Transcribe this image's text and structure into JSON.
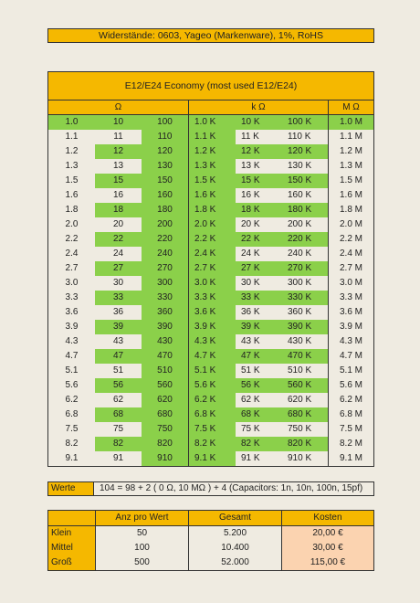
{
  "banner": "Widerstände: 0603, Yageo (Markenware),  1%, RoHS",
  "table": {
    "title": "E12/E24 Economy (most used E12/E24)",
    "headers": [
      "Ω",
      "k Ω",
      "M Ω"
    ],
    "rows": [
      [
        "1.0",
        "10",
        "100",
        "1.0 K",
        "10 K",
        "100 K",
        "1.0 M"
      ],
      [
        "1.1",
        "11",
        "110",
        "1.1 K",
        "11 K",
        "110 K",
        "1.1 M"
      ],
      [
        "1.2",
        "12",
        "120",
        "1.2 K",
        "12 K",
        "120 K",
        "1.2 M"
      ],
      [
        "1.3",
        "13",
        "130",
        "1.3 K",
        "13 K",
        "130 K",
        "1.3 M"
      ],
      [
        "1.5",
        "15",
        "150",
        "1.5 K",
        "15 K",
        "150 K",
        "1.5 M"
      ],
      [
        "1.6",
        "16",
        "160",
        "1.6 K",
        "16 K",
        "160 K",
        "1.6 M"
      ],
      [
        "1.8",
        "18",
        "180",
        "1.8 K",
        "18 K",
        "180 K",
        "1.8 M"
      ],
      [
        "2.0",
        "20",
        "200",
        "2.0 K",
        "20 K",
        "200 K",
        "2.0 M"
      ],
      [
        "2.2",
        "22",
        "220",
        "2.2 K",
        "22 K",
        "220 K",
        "2.2 M"
      ],
      [
        "2.4",
        "24",
        "240",
        "2.4 K",
        "24 K",
        "240 K",
        "2.4 M"
      ],
      [
        "2.7",
        "27",
        "270",
        "2.7 K",
        "27 K",
        "270 K",
        "2.7 M"
      ],
      [
        "3.0",
        "30",
        "300",
        "3.0 K",
        "30 K",
        "300 K",
        "3.0 M"
      ],
      [
        "3.3",
        "33",
        "330",
        "3.3 K",
        "33 K",
        "330 K",
        "3.3 M"
      ],
      [
        "3.6",
        "36",
        "360",
        "3.6 K",
        "36 K",
        "360 K",
        "3.6 M"
      ],
      [
        "3.9",
        "39",
        "390",
        "3.9 K",
        "39 K",
        "390 K",
        "3.9 M"
      ],
      [
        "4.3",
        "43",
        "430",
        "4.3 K",
        "43 K",
        "430 K",
        "4.3 M"
      ],
      [
        "4.7",
        "47",
        "470",
        "4.7 K",
        "47 K",
        "470 K",
        "4.7 M"
      ],
      [
        "5.1",
        "51",
        "510",
        "5.1 K",
        "51 K",
        "510 K",
        "5.1 M"
      ],
      [
        "5.6",
        "56",
        "560",
        "5.6 K",
        "56 K",
        "560 K",
        "5.6 M"
      ],
      [
        "6.2",
        "62",
        "620",
        "6.2 K",
        "62 K",
        "620 K",
        "6.2 M"
      ],
      [
        "6.8",
        "68",
        "680",
        "6.8 K",
        "68 K",
        "680 K",
        "6.8 M"
      ],
      [
        "7.5",
        "75",
        "750",
        "7.5 K",
        "75 K",
        "750 K",
        "7.5 M"
      ],
      [
        "8.2",
        "82",
        "820",
        "8.2 K",
        "82 K",
        "820 K",
        "8.2 M"
      ],
      [
        "9.1",
        "91",
        "910",
        "9.1 K",
        "91 K",
        "910 K",
        "9.1 M"
      ]
    ]
  },
  "werte": {
    "label": "Werte",
    "text": "104 = 98 + 2 ( 0 Ω, 10 MΩ ) + 4 (Capacitors: 1n, 10n, 100n, 15pf)"
  },
  "cost": {
    "headers": [
      "",
      "Anz pro Wert",
      "Gesamt",
      "Kosten"
    ],
    "rows": [
      [
        "Klein",
        "50",
        "5.200",
        "20,00 €"
      ],
      [
        "Mittel",
        "100",
        "10.400",
        "30,00 €"
      ],
      [
        "Groß",
        "500",
        "52.000",
        "115,00 €"
      ]
    ]
  },
  "colors": {
    "orange": "#f5b800",
    "green": "#8bd04a",
    "beige": "#efebe1",
    "peach": "#fbd3b0"
  }
}
